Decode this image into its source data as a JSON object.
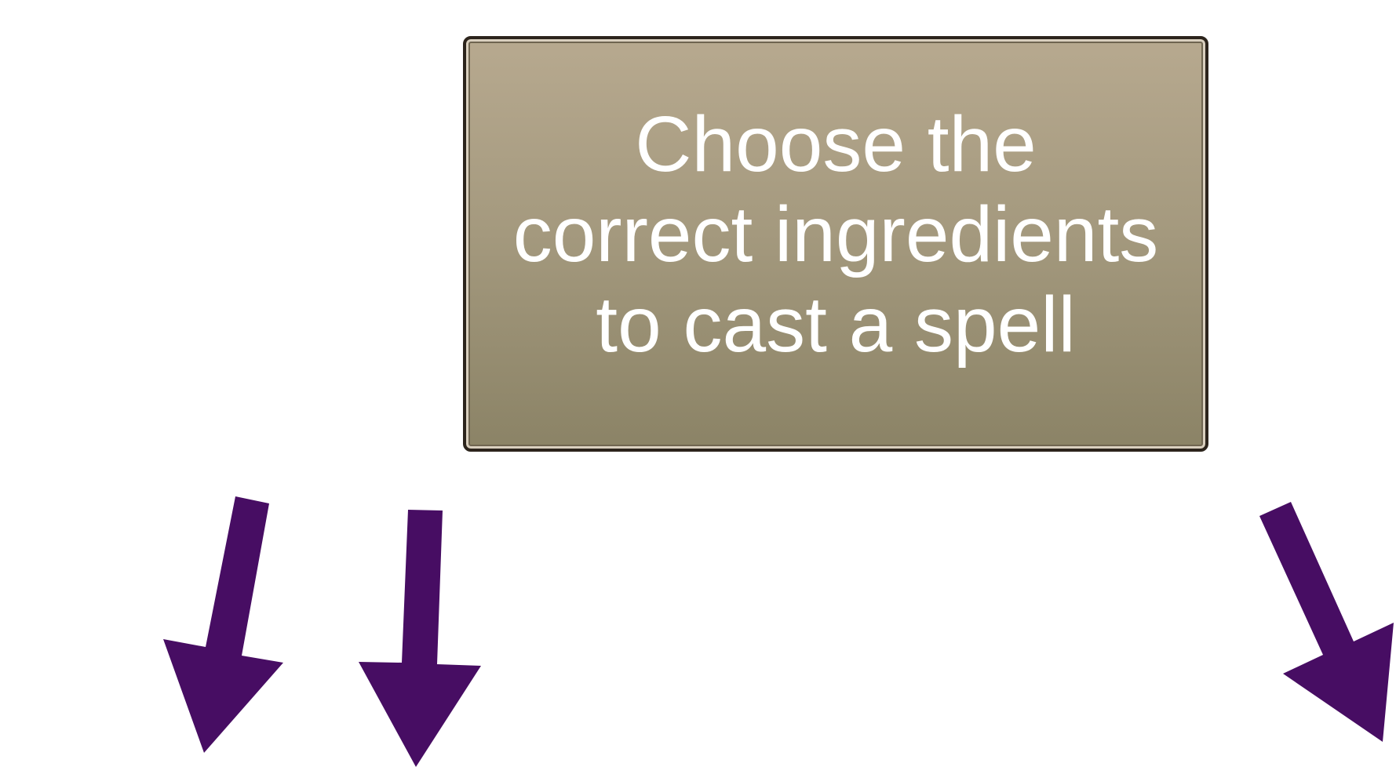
{
  "instruction": {
    "text": "Choose the\ncorrect ingredients\nto cast a spell"
  },
  "arrows": [
    {
      "name": "arrow-left-icon"
    },
    {
      "name": "arrow-middle-icon"
    },
    {
      "name": "arrow-right-icon"
    }
  ],
  "colors": {
    "arrow": "#470d63",
    "panel_top": "#b7a98f",
    "panel_bottom": "#8b8366",
    "panel_border": "#2c241c",
    "text": "#ffffff"
  }
}
